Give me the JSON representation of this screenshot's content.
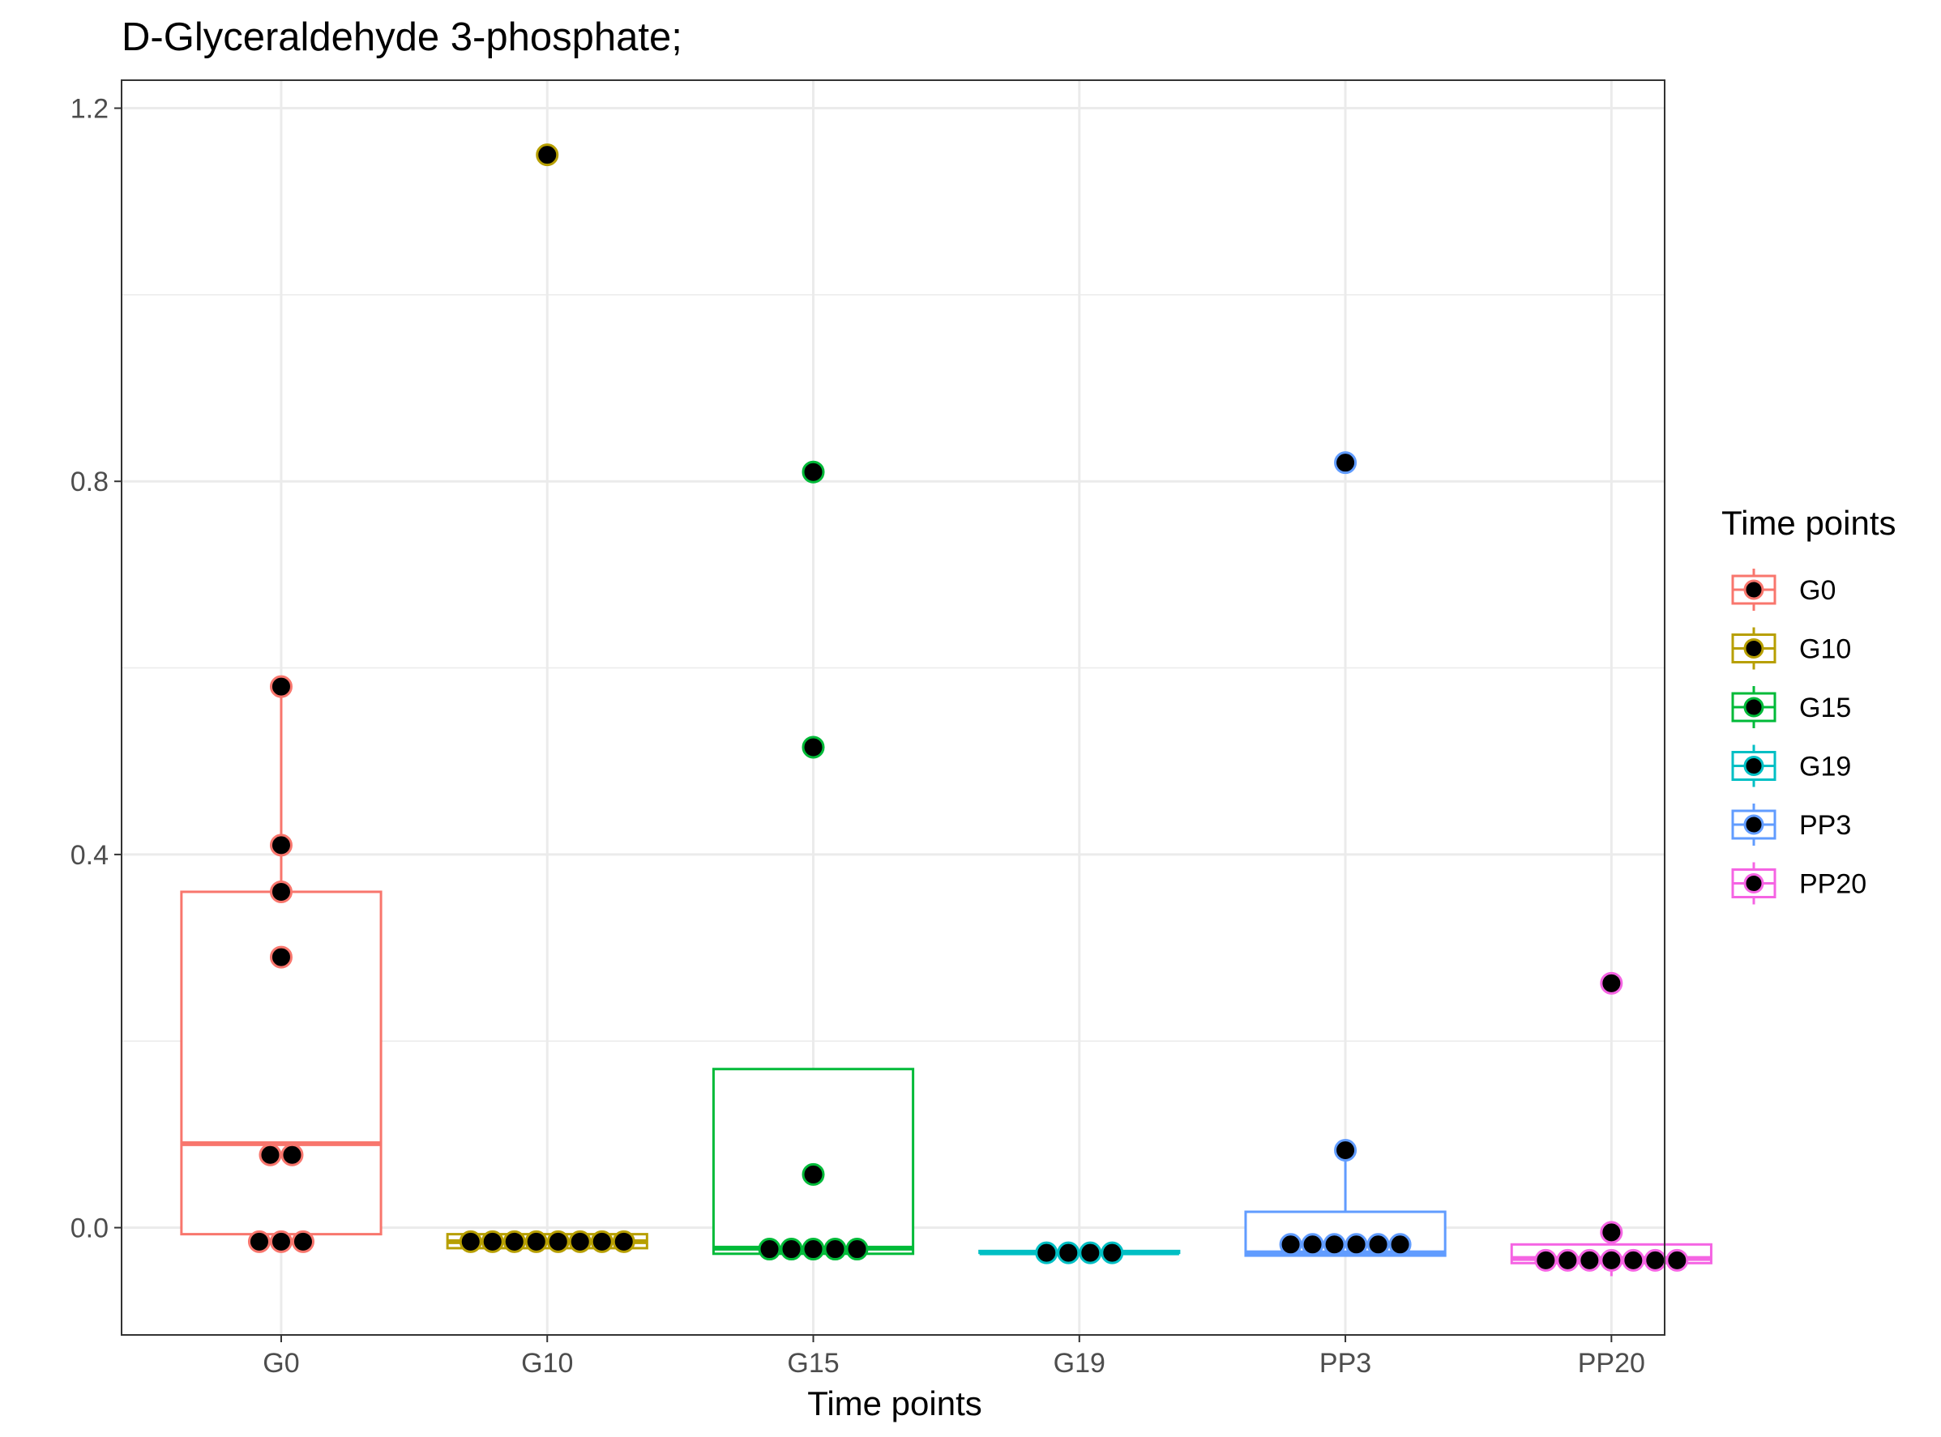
{
  "chart_data": {
    "type": "box",
    "title": "D-Glyceraldehyde 3-phosphate;",
    "xlabel": "Time points",
    "ylabel": "",
    "ylim": [
      -0.115,
      1.23
    ],
    "yticks": [
      0.0,
      0.4,
      0.8,
      1.2
    ],
    "ytick_labels": [
      "0.0",
      "0.4",
      "0.8",
      "1.2"
    ],
    "categories": [
      "G0",
      "G10",
      "G15",
      "G19",
      "PP3",
      "PP20"
    ],
    "grid": true,
    "legend": {
      "title": "Time points",
      "position": "right"
    },
    "series": [
      {
        "name": "G0",
        "color": "#F8766D",
        "box": {
          "whisker_low": -0.015,
          "q1": -0.007,
          "median": 0.09,
          "q3": 0.36,
          "whisker_high": 0.58
        },
        "points": [
          0.58,
          0.41,
          0.36,
          0.29,
          0.078,
          0.078,
          -0.015,
          -0.015,
          -0.015
        ]
      },
      {
        "name": "G10",
        "color": "#B79F00",
        "box": {
          "whisker_low": -0.022,
          "q1": -0.022,
          "median": -0.015,
          "q3": -0.007,
          "whisker_high": -0.007
        },
        "points": [
          1.15,
          -0.015,
          -0.015,
          -0.015,
          -0.015,
          -0.015,
          -0.015,
          -0.015,
          -0.015
        ]
      },
      {
        "name": "G15",
        "color": "#00BA38",
        "box": {
          "whisker_low": -0.028,
          "q1": -0.028,
          "median": -0.022,
          "q3": 0.17,
          "whisker_high": 0.17
        },
        "points": [
          0.81,
          0.515,
          0.057,
          -0.023,
          -0.023,
          -0.023,
          -0.023,
          -0.023
        ]
      },
      {
        "name": "G19",
        "color": "#00BFC4",
        "box": {
          "whisker_low": -0.027,
          "q1": -0.027,
          "median": -0.027,
          "q3": -0.025,
          "whisker_high": -0.025
        },
        "points": [
          -0.027,
          -0.027,
          -0.027,
          -0.027
        ]
      },
      {
        "name": "PP3",
        "color": "#619CFF",
        "box": {
          "whisker_low": -0.03,
          "q1": -0.03,
          "median": -0.027,
          "q3": 0.017,
          "whisker_high": 0.083
        },
        "points": [
          0.82,
          0.083,
          -0.018,
          -0.018,
          -0.018,
          -0.018,
          -0.018,
          -0.018
        ]
      },
      {
        "name": "PP20",
        "color": "#F564E3",
        "box": {
          "whisker_low": -0.052,
          "q1": -0.038,
          "median": -0.033,
          "q3": -0.018,
          "whisker_high": -0.005
        },
        "points": [
          0.262,
          -0.005,
          -0.035,
          -0.035,
          -0.035,
          -0.035,
          -0.035,
          -0.035,
          -0.035
        ]
      }
    ]
  }
}
